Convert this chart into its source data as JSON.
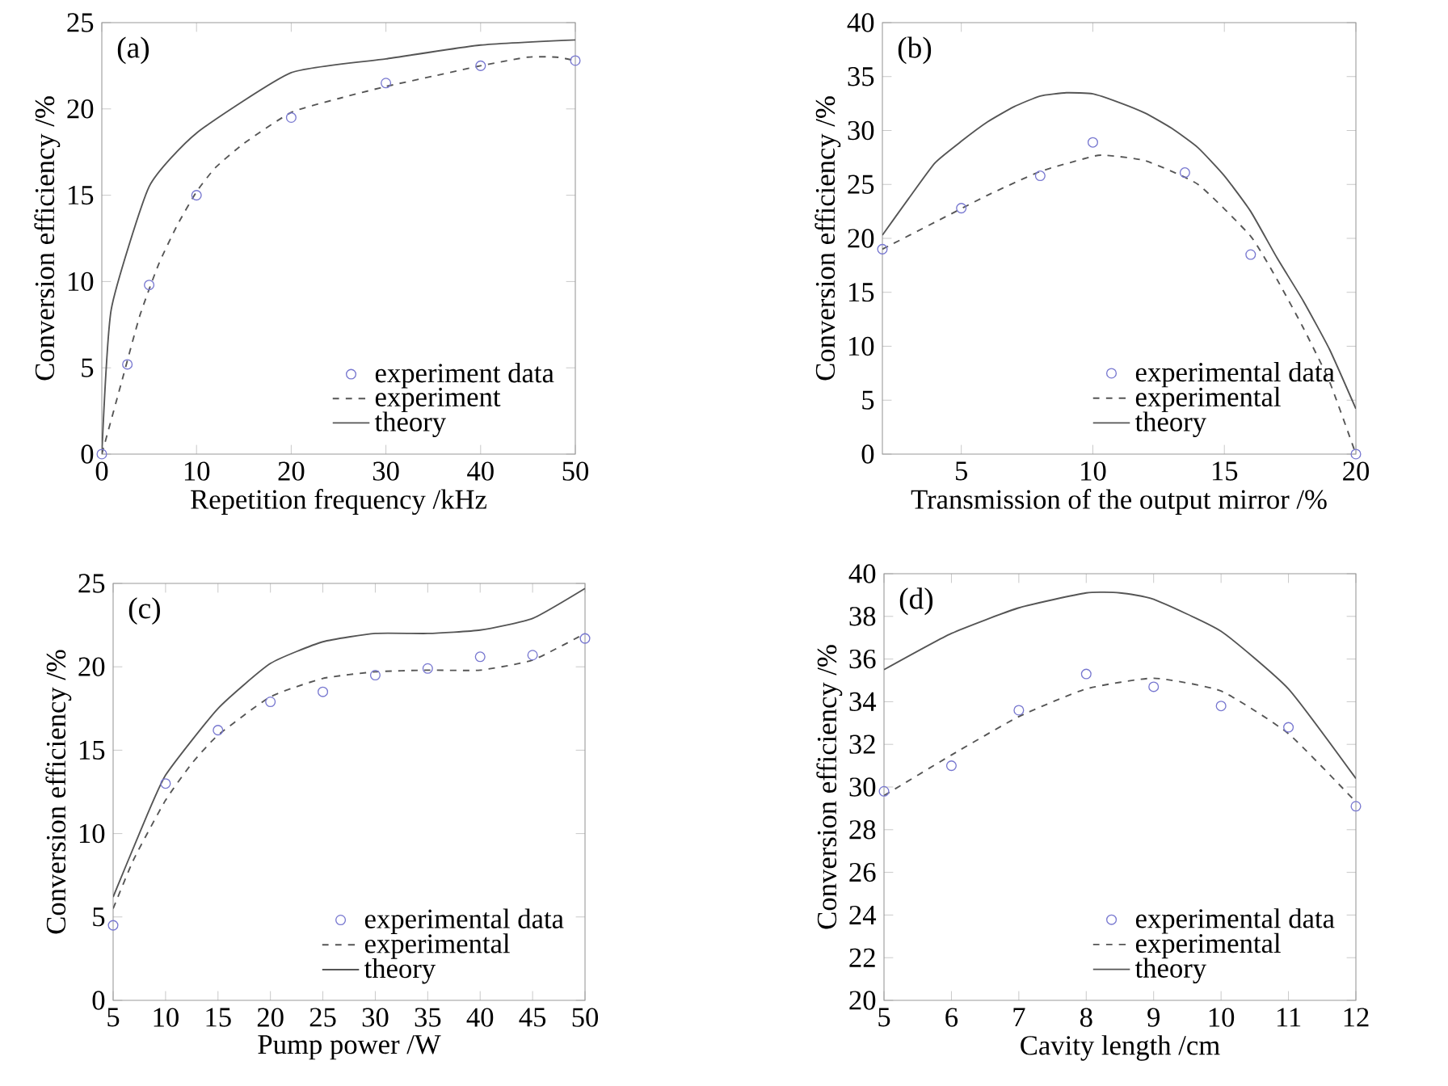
{
  "chart_data": [
    {
      "type": "line",
      "annotations": [
        "(a)"
      ],
      "xlabel": "Repetition frequency /kHz",
      "ylabel": "Conversion efficiency /%",
      "xlim": [
        0,
        50
      ],
      "ylim": [
        0,
        25
      ],
      "xticks": [
        0,
        10,
        20,
        30,
        40,
        50
      ],
      "yticks": [
        0,
        5,
        10,
        15,
        20,
        25
      ],
      "legend": "bottom right",
      "grid": false,
      "series": [
        {
          "name": "experiment data",
          "type": "scatter",
          "marker": "circle",
          "color": "#7878d0",
          "x": [
            0,
            2.7,
            5,
            10,
            20,
            30,
            40,
            50
          ],
          "values": [
            0,
            5.2,
            9.8,
            15,
            19.5,
            21.5,
            22.5,
            22.8
          ]
        },
        {
          "name": "experiment",
          "line_style": "dashed",
          "color": "#555555",
          "x": [
            0,
            2,
            4,
            6,
            8,
            10,
            12,
            15,
            20,
            25,
            30,
            35,
            40,
            45,
            48,
            50
          ],
          "values": [
            0,
            4,
            8,
            11,
            13.3,
            15.2,
            16.6,
            18,
            19.8,
            20.6,
            21.3,
            21.9,
            22.5,
            23,
            23,
            22.8
          ]
        },
        {
          "name": "theory",
          "line_style": "solid",
          "color": "#555555",
          "x": [
            0,
            1,
            5,
            10,
            20,
            30,
            40,
            50
          ],
          "values": [
            0,
            8.4,
            15.5,
            18.6,
            22.1,
            22.9,
            23.7,
            24
          ]
        }
      ]
    },
    {
      "type": "line",
      "annotations": [
        "(b)"
      ],
      "xlabel": "Transmission of the output mirror /%",
      "ylabel": "Conversion efficiency /%",
      "xlim": [
        2,
        20
      ],
      "ylim": [
        0,
        40
      ],
      "xticks": [
        5,
        10,
        15,
        20
      ],
      "yticks": [
        0,
        5,
        10,
        15,
        20,
        25,
        30,
        35,
        40
      ],
      "legend": "bottom right",
      "grid": false,
      "series": [
        {
          "name": "experimental data",
          "type": "scatter",
          "marker": "circle",
          "color": "#7878d0",
          "x": [
            2,
            5,
            8,
            10,
            13.5,
            16,
            20
          ],
          "values": [
            19,
            22.8,
            25.8,
            28.9,
            26.1,
            18.5,
            0
          ]
        },
        {
          "name": "experimental",
          "line_style": "dashed",
          "color": "#555555",
          "x": [
            2,
            4,
            6,
            8,
            10,
            10.5,
            12,
            14,
            16,
            17,
            18,
            19,
            20
          ],
          "values": [
            19,
            21.5,
            24,
            26.2,
            27.6,
            27.7,
            27.2,
            25,
            20.2,
            16.2,
            11.7,
            6.7,
            0
          ]
        },
        {
          "name": "theory",
          "line_style": "solid",
          "color": "#555555",
          "x": [
            2,
            3,
            4,
            5,
            6,
            7,
            8,
            9,
            10,
            11,
            12,
            13,
            14,
            15,
            16,
            17,
            18,
            19,
            20
          ],
          "values": [
            20.3,
            23.7,
            27,
            29,
            30.8,
            32.2,
            33.2,
            33.5,
            33.4,
            32.6,
            31.6,
            30.2,
            28.4,
            25.8,
            22.5,
            18.2,
            14.2,
            9.7,
            4.2
          ]
        }
      ]
    },
    {
      "type": "line",
      "annotations": [
        "(c)"
      ],
      "xlabel": "Pump power /W",
      "ylabel": "Conversion efficiency /%",
      "xlim": [
        5,
        50
      ],
      "ylim": [
        0,
        25
      ],
      "xticks": [
        5,
        10,
        15,
        20,
        25,
        30,
        35,
        40,
        45,
        50
      ],
      "yticks": [
        0,
        5,
        10,
        15,
        20,
        25
      ],
      "legend": "bottom right",
      "grid": false,
      "series": [
        {
          "name": "experimental data",
          "type": "scatter",
          "marker": "circle",
          "color": "#7878d0",
          "x": [
            5,
            10,
            15,
            20,
            25,
            30,
            35,
            40,
            45,
            50
          ],
          "values": [
            4.5,
            13,
            16.2,
            17.9,
            18.5,
            19.5,
            19.9,
            20.6,
            20.7,
            21.7
          ]
        },
        {
          "name": "experimental",
          "line_style": "dashed",
          "color": "#555555",
          "x": [
            5,
            7,
            10,
            12.5,
            15,
            20,
            25,
            30,
            35,
            40,
            45,
            50
          ],
          "values": [
            5.5,
            8.5,
            12,
            14.2,
            15.9,
            18.2,
            19.3,
            19.7,
            19.8,
            19.8,
            20.4,
            22
          ]
        },
        {
          "name": "theory",
          "line_style": "solid",
          "color": "#555555",
          "x": [
            5,
            7.5,
            10,
            15,
            20,
            25,
            30,
            35,
            40,
            45,
            50
          ],
          "values": [
            6.2,
            10,
            13.5,
            17.5,
            20.2,
            21.5,
            22,
            22,
            22.2,
            22.9,
            24.7
          ]
        }
      ]
    },
    {
      "type": "line",
      "annotations": [
        "(d)"
      ],
      "xlabel": "Cavity length /cm",
      "ylabel": "Conversion efficiency /%",
      "xlim": [
        5,
        12
      ],
      "ylim": [
        20,
        40
      ],
      "xticks": [
        5,
        6,
        7,
        8,
        9,
        10,
        11,
        12
      ],
      "yticks": [
        20,
        22,
        24,
        26,
        28,
        30,
        32,
        34,
        36,
        38,
        40
      ],
      "legend": "bottom right",
      "grid": false,
      "series": [
        {
          "name": "experimental data",
          "type": "scatter",
          "marker": "circle",
          "color": "#7878d0",
          "x": [
            5,
            6,
            7,
            8,
            9,
            10,
            11,
            12
          ],
          "values": [
            29.8,
            31,
            33.6,
            35.3,
            34.7,
            33.8,
            32.8,
            29.1
          ]
        },
        {
          "name": "experimental",
          "line_style": "dashed",
          "color": "#555555",
          "x": [
            5,
            6,
            7,
            8,
            9,
            10,
            11,
            12
          ],
          "values": [
            29.6,
            31.5,
            33.3,
            34.6,
            35.1,
            34.5,
            32.5,
            29.3
          ]
        },
        {
          "name": "theory",
          "line_style": "solid",
          "color": "#555555",
          "x": [
            5,
            6,
            7,
            8,
            8.5,
            9,
            10,
            11,
            12
          ],
          "values": [
            35.5,
            37.2,
            38.4,
            39.1,
            39.1,
            38.8,
            37.3,
            34.6,
            30.4
          ]
        }
      ]
    }
  ]
}
